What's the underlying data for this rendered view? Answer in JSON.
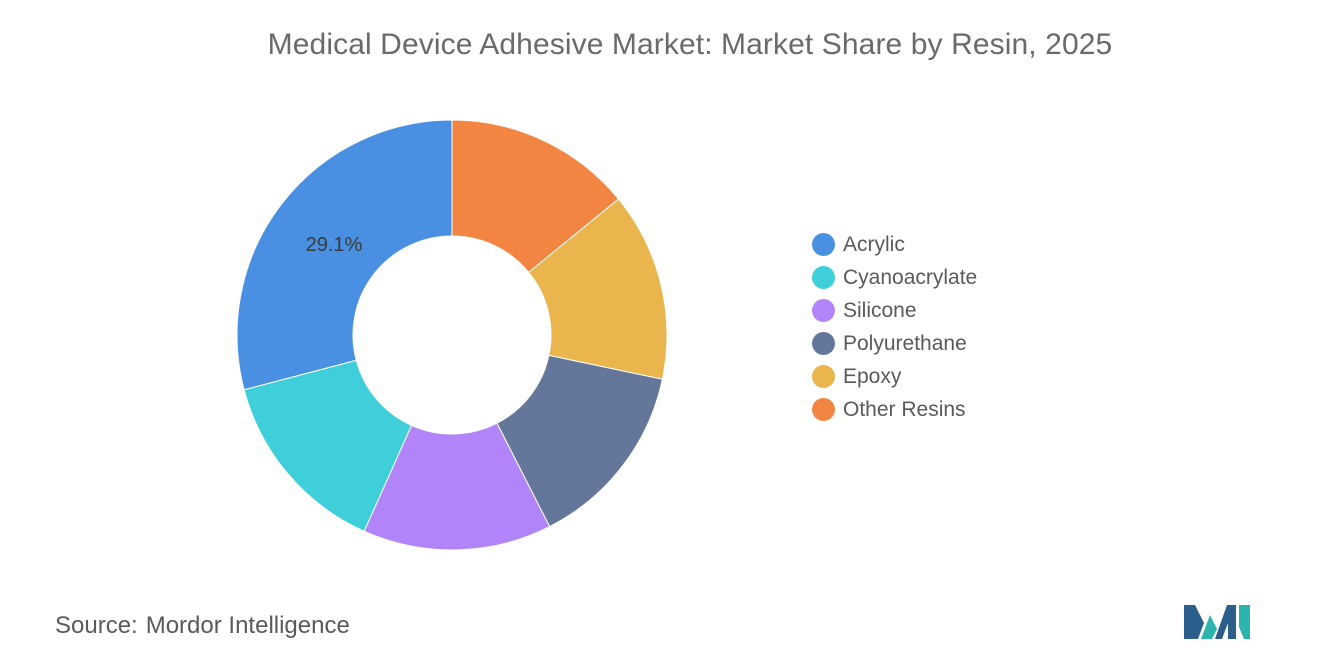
{
  "chart_data": {
    "type": "pie",
    "title": "Medical Device Adhesive Market: Market Share by Resin, 2025",
    "categories": [
      "Acrylic",
      "Cyanoacrylate",
      "Silicone",
      "Polyurethane",
      "Epoxy",
      "Other Resins"
    ],
    "values": [
      29.1,
      14.2,
      14.2,
      14.2,
      14.2,
      14.1
    ],
    "colors": [
      "#4a90e2",
      "#3fcfda",
      "#b185f9",
      "#64779b",
      "#eab54c",
      "#f38542"
    ],
    "data_labels": [
      {
        "category": "Acrylic",
        "text": "29.1%"
      }
    ],
    "donut": true,
    "legend_placement": "right"
  },
  "source": {
    "prefix": "Source:",
    "name": "Mordor Intelligence"
  },
  "logo": {
    "icon": "mordor-intelligence-logo-icon",
    "colors": [
      "#2ab5ac",
      "#2b5e8a"
    ]
  }
}
